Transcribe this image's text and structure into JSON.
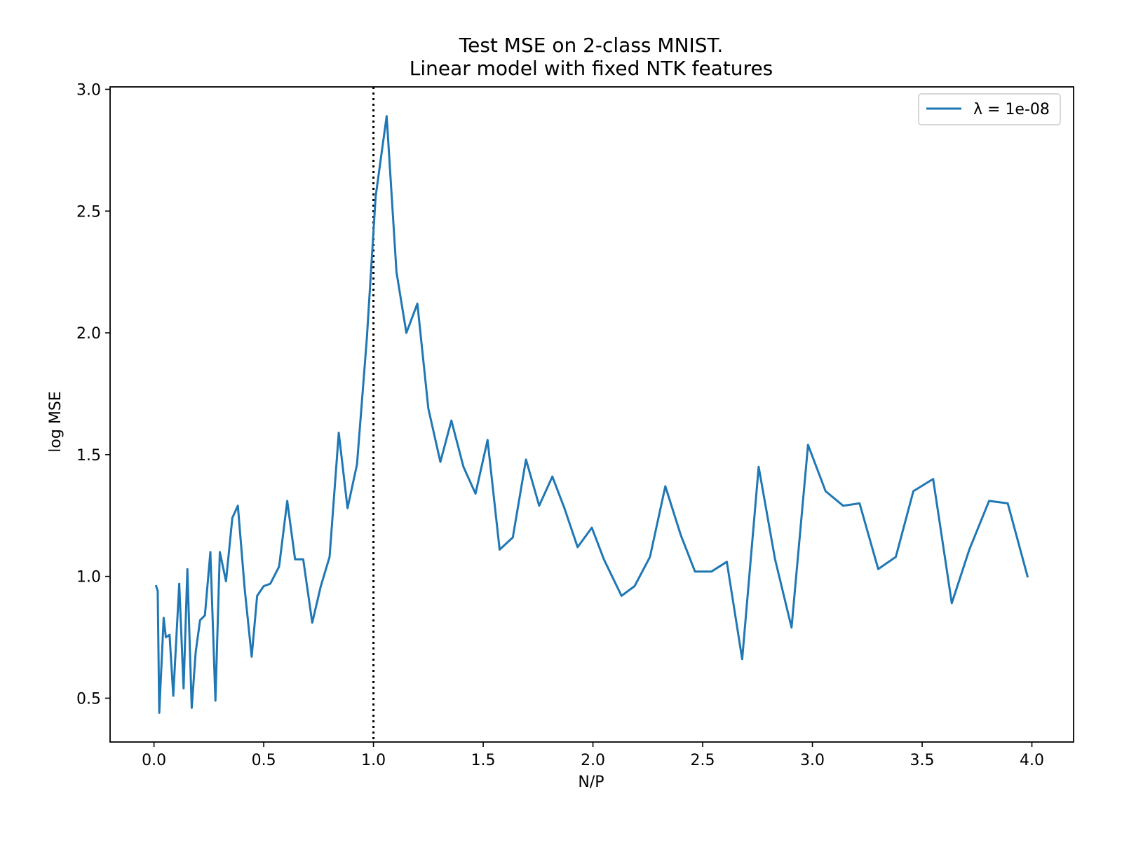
{
  "chart_data": {
    "type": "line",
    "title_lines": [
      "Test MSE on 2-class MNIST.",
      "Linear model with fixed NTK features"
    ],
    "xlabel": "N/P",
    "ylabel": "log MSE",
    "xlim": [
      -0.2,
      4.19
    ],
    "ylim": [
      0.32,
      3.01
    ],
    "x_ticks": [
      0.0,
      0.5,
      1.0,
      1.5,
      2.0,
      2.5,
      3.0,
      3.5,
      4.0
    ],
    "x_tick_labels": [
      "0.0",
      "0.5",
      "1.0",
      "1.5",
      "2.0",
      "2.5",
      "3.0",
      "3.5",
      "4.0"
    ],
    "y_ticks": [
      0.5,
      1.0,
      1.5,
      2.0,
      2.5,
      3.0
    ],
    "y_tick_labels": [
      "0.5",
      "1.0",
      "1.5",
      "2.0",
      "2.5",
      "3.0"
    ],
    "grid": false,
    "legend": {
      "position": "top-right",
      "entries": [
        "λ = 1e-08"
      ]
    },
    "reference_line": {
      "x": 1.0,
      "style": "dotted",
      "color": "#000000"
    },
    "series": [
      {
        "name": "λ = 1e-08",
        "color": "#1f77b4",
        "x": [
          0.01,
          0.017,
          0.024,
          0.044,
          0.054,
          0.071,
          0.088,
          0.115,
          0.135,
          0.152,
          0.172,
          0.19,
          0.21,
          0.232,
          0.257,
          0.28,
          0.3,
          0.328,
          0.357,
          0.382,
          0.413,
          0.445,
          0.47,
          0.5,
          0.53,
          0.57,
          0.607,
          0.643,
          0.68,
          0.721,
          0.76,
          0.8,
          0.842,
          0.882,
          0.925,
          0.97,
          1.01,
          1.06,
          1.105,
          1.15,
          1.2,
          1.25,
          1.305,
          1.355,
          1.41,
          1.465,
          1.52,
          1.575,
          1.635,
          1.695,
          1.755,
          1.815,
          1.87,
          1.93,
          1.995,
          2.05,
          2.13,
          2.19,
          2.26,
          2.33,
          2.4,
          2.465,
          2.54,
          2.61,
          2.68,
          2.755,
          2.83,
          2.905,
          2.98,
          3.06,
          3.14,
          3.215,
          3.3,
          3.38,
          3.46,
          3.55,
          3.635,
          3.715,
          3.805,
          3.89,
          3.98
        ],
        "y": [
          0.96,
          0.94,
          0.44,
          0.83,
          0.75,
          0.76,
          0.51,
          0.97,
          0.54,
          1.03,
          0.46,
          0.69,
          0.82,
          0.84,
          1.1,
          0.49,
          1.1,
          0.98,
          1.24,
          1.29,
          0.95,
          0.67,
          0.92,
          0.96,
          0.97,
          1.04,
          1.31,
          1.07,
          1.07,
          0.81,
          0.96,
          1.08,
          1.59,
          1.28,
          1.46,
          1.98,
          2.56,
          2.89,
          2.25,
          2.0,
          2.12,
          1.69,
          1.47,
          1.64,
          1.45,
          1.34,
          1.56,
          1.11,
          1.16,
          1.48,
          1.29,
          1.41,
          1.28,
          1.12,
          1.2,
          1.07,
          0.92,
          0.96,
          1.08,
          1.37,
          1.17,
          1.02,
          1.02,
          1.06,
          0.66,
          1.45,
          1.07,
          0.79,
          1.54,
          1.35,
          1.29,
          1.3,
          1.03,
          1.08,
          1.35,
          1.4,
          0.89,
          1.11,
          1.31,
          1.3,
          1.0
        ]
      }
    ]
  }
}
